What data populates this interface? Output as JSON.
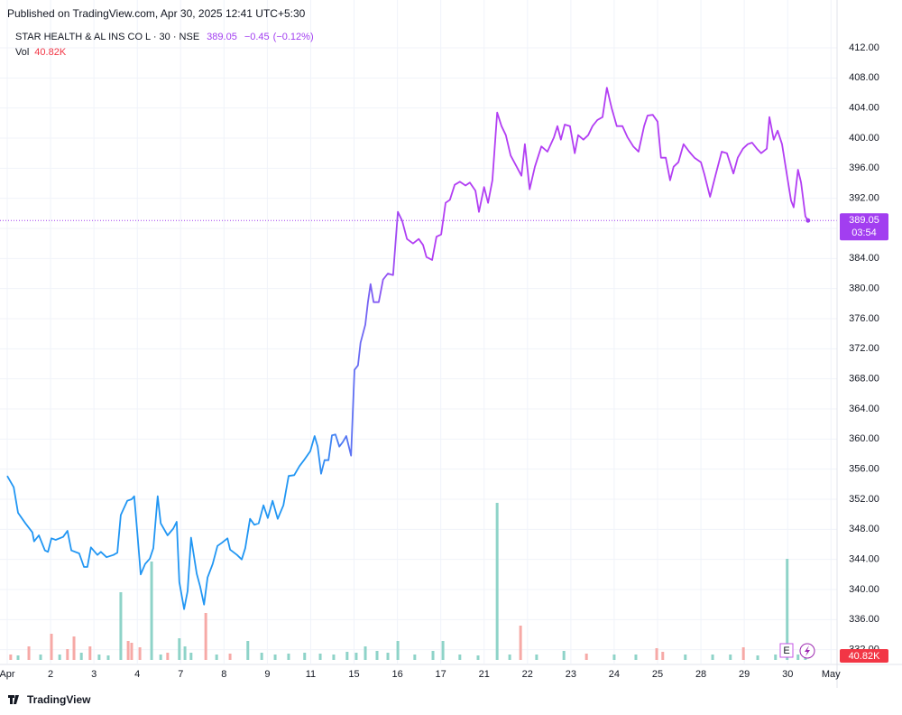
{
  "header": {
    "published": "Published on TradingView.com, Apr 30, 2025 12:41 UTC+5:30",
    "logo": "TradingView"
  },
  "chart_data": {
    "type": "line",
    "symbol": "STAR HEALTH & AL INS CO L · 30 · NSE",
    "last_price": 389.05,
    "change": {
      "value": -0.45,
      "label": "−0.45"
    },
    "change_pct": {
      "value": -0.12,
      "label": "(−0.12%)"
    },
    "countdown": "03:54",
    "vol_title": "Vol",
    "last_volume": {
      "value": 40.82,
      "label": "40.82K"
    },
    "earnings_marker": "E",
    "color": "#2196f3",
    "color_end": "#b23ef3",
    "label_color": "#a23ef0",
    "grid": true,
    "xlim": [
      0,
      19.14
    ],
    "ylim": [
      330.16,
      414.76
    ],
    "xticks": [
      {
        "value": 0,
        "label": "Apr"
      },
      {
        "value": 1,
        "label": "2"
      },
      {
        "value": 2,
        "label": "3"
      },
      {
        "value": 3,
        "label": "4"
      },
      {
        "value": 4,
        "label": "7"
      },
      {
        "value": 5,
        "label": "8"
      },
      {
        "value": 6,
        "label": "9"
      },
      {
        "value": 7,
        "label": "11"
      },
      {
        "value": 8,
        "label": "15"
      },
      {
        "value": 9,
        "label": "16"
      },
      {
        "value": 10,
        "label": "17"
      },
      {
        "value": 11,
        "label": "21"
      },
      {
        "value": 12,
        "label": "22"
      },
      {
        "value": 13,
        "label": "23"
      },
      {
        "value": 14,
        "label": "24"
      },
      {
        "value": 15,
        "label": "25"
      },
      {
        "value": 16,
        "label": "28"
      },
      {
        "value": 17,
        "label": "29"
      },
      {
        "value": 18,
        "label": "30"
      },
      {
        "value": 19,
        "label": "May"
      }
    ],
    "yticks": [
      {
        "value": 332,
        "label": "332.00"
      },
      {
        "value": 336,
        "label": "336.00"
      },
      {
        "value": 340,
        "label": "340.00"
      },
      {
        "value": 344,
        "label": "344.00"
      },
      {
        "value": 348,
        "label": "348.00"
      },
      {
        "value": 352,
        "label": "352.00"
      },
      {
        "value": 356,
        "label": "356.00"
      },
      {
        "value": 360,
        "label": "360.00"
      },
      {
        "value": 364,
        "label": "364.00"
      },
      {
        "value": 368,
        "label": "368.00"
      },
      {
        "value": 372,
        "label": "372.00"
      },
      {
        "value": 376,
        "label": "376.00"
      },
      {
        "value": 380,
        "label": "380.00"
      },
      {
        "value": 384,
        "label": "384.00"
      },
      {
        "value": 388,
        "label": "388.00"
      },
      {
        "value": 392,
        "label": "392.00"
      },
      {
        "value": 396,
        "label": "396.00"
      },
      {
        "value": 400,
        "label": "400.00"
      },
      {
        "value": 404,
        "label": "404.00"
      },
      {
        "value": 408,
        "label": "408.00"
      },
      {
        "value": 412,
        "label": "412.00"
      }
    ],
    "x": [
      0,
      0.15,
      0.25,
      0.42,
      0.58,
      0.62,
      0.73,
      0.87,
      0.94,
      1.02,
      1.12,
      1.29,
      1.39,
      1.48,
      1.66,
      1.77,
      1.85,
      1.93,
      2.08,
      2.16,
      2.29,
      2.45,
      2.54,
      2.62,
      2.77,
      2.87,
      2.93,
      3.0,
      3.08,
      3.18,
      3.29,
      3.37,
      3.47,
      3.54,
      3.7,
      3.83,
      3.91,
      3.97,
      4.08,
      4.16,
      4.24,
      4.37,
      4.45,
      4.54,
      4.62,
      4.74,
      4.85,
      4.95,
      5.08,
      5.14,
      5.3,
      5.41,
      5.49,
      5.6,
      5.7,
      5.8,
      5.91,
      6.01,
      6.12,
      6.24,
      6.37,
      6.49,
      6.62,
      6.74,
      6.86,
      6.99,
      7.09,
      7.16,
      7.24,
      7.32,
      7.41,
      7.49,
      7.57,
      7.66,
      7.74,
      7.82,
      7.93,
      8.01,
      8.09,
      8.15,
      8.26,
      8.32,
      8.38,
      8.45,
      8.57,
      8.67,
      8.78,
      8.9,
      9.01,
      9.11,
      9.22,
      9.36,
      9.49,
      9.59,
      9.67,
      9.8,
      9.9,
      10.01,
      10.11,
      10.21,
      10.32,
      10.44,
      10.57,
      10.67,
      10.8,
      10.88,
      11.0,
      11.09,
      11.19,
      11.3,
      11.4,
      11.5,
      11.61,
      11.75,
      11.86,
      11.94,
      12.05,
      12.17,
      12.32,
      12.46,
      12.61,
      12.69,
      12.77,
      12.86,
      12.98,
      13.09,
      13.17,
      13.29,
      13.4,
      13.5,
      13.61,
      13.73,
      13.83,
      13.94,
      14.06,
      14.19,
      14.31,
      14.44,
      14.56,
      14.69,
      14.77,
      14.89,
      15.0,
      15.08,
      15.19,
      15.29,
      15.37,
      15.48,
      15.6,
      15.73,
      15.85,
      16.0,
      16.08,
      16.21,
      16.33,
      16.48,
      16.6,
      16.75,
      16.85,
      16.97,
      17.08,
      17.18,
      17.29,
      17.39,
      17.52,
      17.58,
      17.68,
      17.77,
      17.87,
      17.99,
      18.08,
      18.14,
      18.24,
      18.31,
      18.41,
      18.47
    ],
    "values": [
      355.1,
      353.6,
      350.2,
      348.8,
      347.6,
      346.4,
      347.2,
      345.2,
      345,
      346.8,
      346.6,
      347,
      347.8,
      345.2,
      344.8,
      343,
      343,
      345.6,
      344.6,
      345,
      344.3,
      344.6,
      344.9,
      349.9,
      351.8,
      352,
      352.4,
      347.6,
      342,
      343.4,
      344.1,
      345.5,
      352.4,
      348.8,
      347.2,
      348.1,
      349,
      341,
      337.4,
      339.8,
      346.9,
      342.1,
      340.4,
      338,
      341.6,
      343.4,
      345.8,
      346.2,
      346.8,
      345.3,
      344.6,
      344,
      345.5,
      349.4,
      348.6,
      348.8,
      351.2,
      349.5,
      351.8,
      349.4,
      351.2,
      355.1,
      355.2,
      356.4,
      357.3,
      358.4,
      360.4,
      359,
      355.4,
      357.2,
      357.2,
      360.5,
      360.6,
      359,
      359.6,
      360.4,
      357.8,
      369.2,
      369.8,
      372.8,
      375.2,
      378.2,
      380.6,
      378.2,
      378.2,
      381.2,
      382,
      381.8,
      390.2,
      389,
      386.6,
      386,
      386.6,
      385.8,
      384.2,
      383.8,
      386.9,
      387.2,
      391.4,
      391.8,
      393.8,
      394.2,
      393.7,
      394.1,
      393,
      390.2,
      393.5,
      391.4,
      394.4,
      403.4,
      401.6,
      400.4,
      397.7,
      396.2,
      395,
      399.2,
      393.2,
      396.2,
      398.9,
      398.2,
      400.1,
      401.6,
      399.8,
      401.8,
      401.6,
      398,
      400.4,
      399.8,
      400.4,
      401.6,
      402.4,
      402.8,
      406.7,
      404,
      401.6,
      401.6,
      400.1,
      398.9,
      398.2,
      401.6,
      403,
      403.1,
      402.2,
      397.4,
      397.4,
      394.4,
      396.2,
      396.8,
      399.2,
      398.2,
      397.4,
      396.8,
      395.2,
      392.2,
      394.9,
      398.2,
      398,
      395.3,
      397.4,
      398.6,
      399.2,
      399.4,
      398.6,
      398,
      398.6,
      402.8,
      399.8,
      401,
      399.2,
      394.9,
      391.7,
      390.8,
      395.8,
      394.1,
      389.6,
      389.05
    ],
    "volume": {
      "ylim": [
        0,
        2000
      ],
      "up_color": "#8ed3c8",
      "down_color": "#f6a9a6",
      "x": [
        0.08,
        0.25,
        0.5,
        0.77,
        1.02,
        1.21,
        1.39,
        1.54,
        1.71,
        1.91,
        2.12,
        2.33,
        2.62,
        2.79,
        2.87,
        3.06,
        3.33,
        3.54,
        3.7,
        3.97,
        4.1,
        4.24,
        4.58,
        4.83,
        5.14,
        5.55,
        5.87,
        6.18,
        6.49,
        6.86,
        7.22,
        7.53,
        7.84,
        8.05,
        8.26,
        8.53,
        8.78,
        9.01,
        9.4,
        9.82,
        10.05,
        10.44,
        10.86,
        11.3,
        11.59,
        11.84,
        12.21,
        12.84,
        13.36,
        14.0,
        14.5,
        14.98,
        15.12,
        15.64,
        16.27,
        16.68,
        16.98,
        17.31,
        17.72,
        17.99,
        18.24,
        18.41
      ],
      "values": [
        60,
        50,
        150,
        60,
        290,
        60,
        120,
        260,
        80,
        150,
        60,
        50,
        750,
        210,
        190,
        140,
        1090,
        60,
        80,
        240,
        150,
        80,
        520,
        60,
        70,
        210,
        80,
        60,
        70,
        80,
        70,
        60,
        90,
        80,
        150,
        100,
        80,
        210,
        60,
        100,
        210,
        60,
        50,
        1740,
        60,
        380,
        60,
        100,
        70,
        60,
        60,
        130,
        90,
        60,
        60,
        60,
        140,
        50,
        60,
        1120,
        60,
        40.82
      ],
      "up": [
        false,
        true,
        false,
        true,
        false,
        true,
        false,
        false,
        true,
        false,
        true,
        true,
        true,
        false,
        false,
        false,
        true,
        true,
        false,
        true,
        true,
        true,
        false,
        true,
        false,
        true,
        true,
        true,
        true,
        true,
        true,
        true,
        true,
        true,
        true,
        true,
        true,
        true,
        true,
        true,
        true,
        true,
        true,
        true,
        true,
        false,
        true,
        true,
        false,
        true,
        true,
        false,
        false,
        true,
        true,
        true,
        false,
        true,
        true,
        true,
        true,
        true
      ]
    }
  }
}
